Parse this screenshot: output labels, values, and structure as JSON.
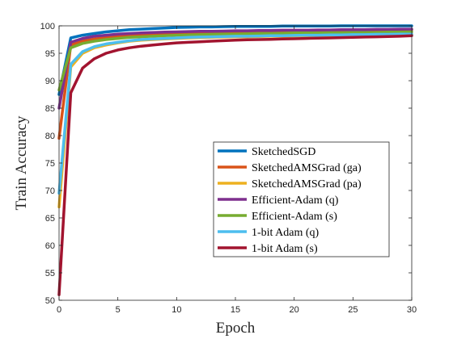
{
  "chart_data": {
    "type": "line",
    "xlabel": "Epoch",
    "ylabel": "Train Accuracy",
    "xlim": [
      0,
      30
    ],
    "ylim": [
      50,
      100
    ],
    "xticks": [
      "0",
      "5",
      "10",
      "15",
      "20",
      "25",
      "30"
    ],
    "yticks": [
      "50",
      "55",
      "60",
      "65",
      "70",
      "75",
      "80",
      "85",
      "90",
      "95",
      "100"
    ],
    "grid": false,
    "legend_position": "lower-right",
    "x": [
      0,
      1,
      2,
      3,
      4,
      5,
      6,
      7,
      8,
      9,
      10,
      11,
      12,
      13,
      14,
      15,
      16,
      17,
      18,
      19,
      20,
      21,
      22,
      23,
      24,
      25,
      26,
      27,
      28,
      29,
      30
    ],
    "series": [
      {
        "name": "SketchedSGD",
        "color": "#0072BD",
        "values": [
          87.5,
          97.8,
          98.3,
          98.6,
          98.9,
          99.1,
          99.3,
          99.4,
          99.5,
          99.6,
          99.7,
          99.75,
          99.8,
          99.8,
          99.85,
          99.9,
          99.9,
          99.9,
          99.9,
          99.95,
          99.95,
          99.95,
          99.95,
          99.95,
          100,
          100,
          100,
          100,
          100,
          100,
          100
        ]
      },
      {
        "name": "SketchedAMSGrad (ga)",
        "color": "#D95319",
        "values": [
          79.5,
          96.5,
          97.2,
          97.6,
          97.9,
          98.1,
          98.3,
          98.4,
          98.5,
          98.6,
          98.7,
          98.75,
          98.8,
          98.85,
          98.9,
          98.95,
          99.0,
          99.0,
          99.05,
          99.1,
          99.1,
          99.1,
          99.15,
          99.15,
          99.2,
          99.2,
          99.2,
          99.25,
          99.25,
          99.3,
          99.3
        ]
      },
      {
        "name": "SketchedAMSGrad (pa)",
        "color": "#EDB120",
        "values": [
          67.0,
          92.5,
          95.0,
          96.0,
          96.5,
          96.9,
          97.2,
          97.4,
          97.5,
          97.6,
          97.7,
          97.8,
          97.85,
          97.9,
          97.95,
          98.0,
          98.0,
          98.05,
          98.1,
          98.1,
          98.15,
          98.2,
          98.2,
          98.25,
          98.25,
          98.3,
          98.3,
          98.35,
          98.35,
          98.4,
          98.4
        ]
      },
      {
        "name": "Efficient-Adam (q)",
        "color": "#7E2F8E",
        "values": [
          85.0,
          97.0,
          97.7,
          98.1,
          98.3,
          98.5,
          98.6,
          98.7,
          98.8,
          98.85,
          98.9,
          98.95,
          99.0,
          99.0,
          99.05,
          99.1,
          99.1,
          99.15,
          99.15,
          99.2,
          99.2,
          99.2,
          99.25,
          99.25,
          99.3,
          99.3,
          99.3,
          99.35,
          99.35,
          99.4,
          99.4
        ]
      },
      {
        "name": "Efficient-Adam (s)",
        "color": "#77AC30",
        "values": [
          88.3,
          96.0,
          96.8,
          97.2,
          97.5,
          97.7,
          97.9,
          98.0,
          98.1,
          98.2,
          98.3,
          98.35,
          98.4,
          98.45,
          98.5,
          98.5,
          98.55,
          98.6,
          98.6,
          98.65,
          98.7,
          98.7,
          98.7,
          98.75,
          98.75,
          98.8,
          98.8,
          98.8,
          98.85,
          98.85,
          98.9
        ]
      },
      {
        "name": "1-bit Adam (q)",
        "color": "#4DBEEE",
        "values": [
          69.5,
          93.0,
          95.3,
          96.2,
          96.7,
          97.0,
          97.3,
          97.5,
          97.6,
          97.7,
          97.8,
          97.9,
          97.95,
          98.0,
          98.05,
          98.1,
          98.1,
          98.15,
          98.2,
          98.2,
          98.25,
          98.3,
          98.3,
          98.35,
          98.35,
          98.4,
          98.4,
          98.45,
          98.45,
          98.5,
          98.5
        ]
      },
      {
        "name": "1-bit Adam (s)",
        "color": "#A2142F",
        "values": [
          51.0,
          87.8,
          92.3,
          94.0,
          95.0,
          95.6,
          96.0,
          96.3,
          96.5,
          96.7,
          96.9,
          97.0,
          97.1,
          97.2,
          97.3,
          97.4,
          97.45,
          97.5,
          97.55,
          97.6,
          97.65,
          97.7,
          97.75,
          97.8,
          97.85,
          97.9,
          97.95,
          98.0,
          98.05,
          98.1,
          98.2
        ]
      }
    ]
  }
}
